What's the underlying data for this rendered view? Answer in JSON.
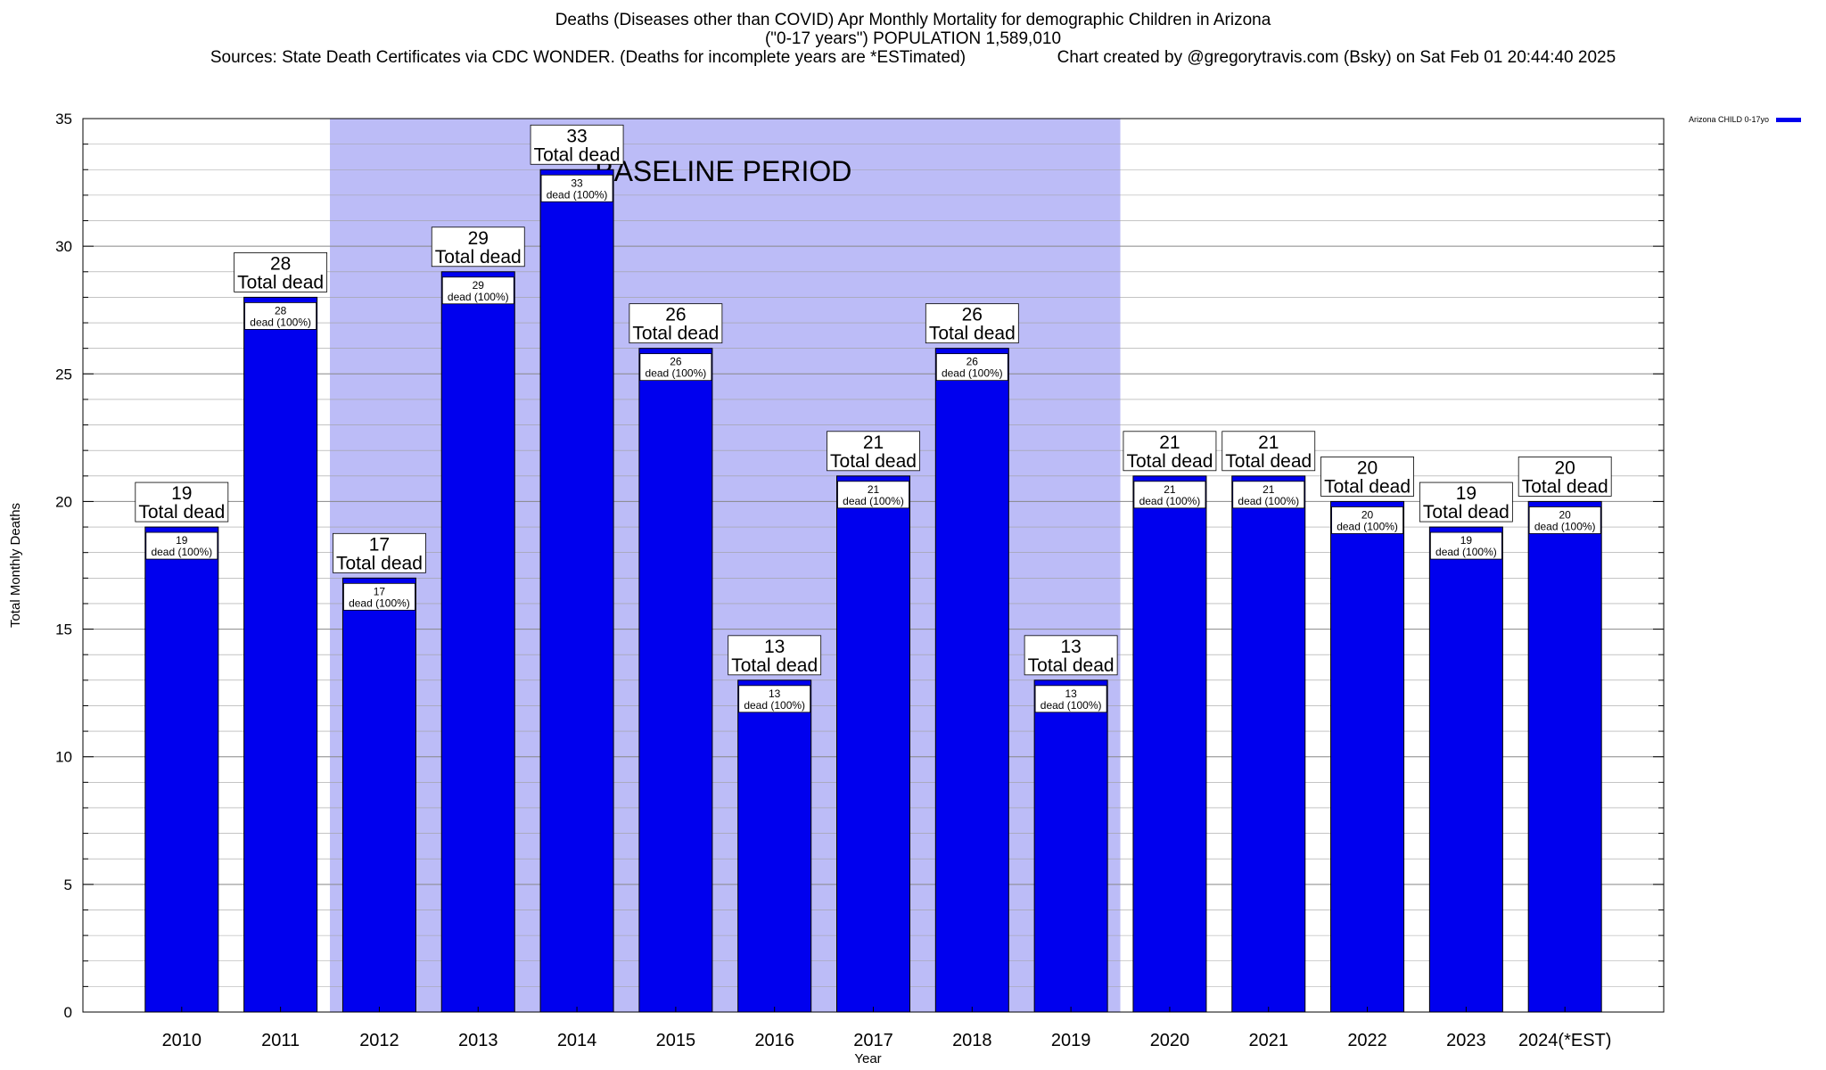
{
  "header": {
    "title_line1": "Deaths (Diseases other than COVID) Apr Monthly Mortality for demographic Children in Arizona",
    "title_line2": "(\"0-17 years\") POPULATION 1,589,010",
    "sources": "Sources: State Death Certificates via CDC WONDER. (Deaths for incomplete years are *ESTimated)",
    "credit": "Chart created by @gregorytravis.com (Bsky) on Sat Feb 01 20:44:40 2025"
  },
  "legend": {
    "label": "Arizona CHILD 0-17yo",
    "color": "#0000ee"
  },
  "colors": {
    "bar": "#0000ee",
    "baseline_shade": "#bcbcf7",
    "grid": "#a0a0a0"
  },
  "chart_data": {
    "type": "bar",
    "title": "Deaths (Diseases other than COVID) Apr Monthly Mortality for demographic Children in Arizona",
    "xlabel": "Year",
    "ylabel": "Total Monthly Deaths",
    "ylim": [
      0,
      35
    ],
    "yticks": [
      0,
      5,
      10,
      15,
      20,
      25,
      30,
      35
    ],
    "grid": true,
    "legend_position": "right",
    "categories": [
      "2010",
      "2011",
      "2012",
      "2013",
      "2014",
      "2015",
      "2016",
      "2017",
      "2018",
      "2019",
      "2020",
      "2021",
      "2022",
      "2023",
      "2024(*EST)"
    ],
    "series": [
      {
        "name": "Arizona CHILD 0-17yo",
        "values": [
          19,
          28,
          17,
          29,
          33,
          26,
          13,
          21,
          26,
          13,
          21,
          21,
          20,
          19,
          20
        ]
      }
    ],
    "total_label_text": "Total dead",
    "inner_label_text": "dead (100%)",
    "baseline": {
      "label": "BASELINE PERIOD",
      "start": "2012",
      "end": "2019"
    }
  }
}
